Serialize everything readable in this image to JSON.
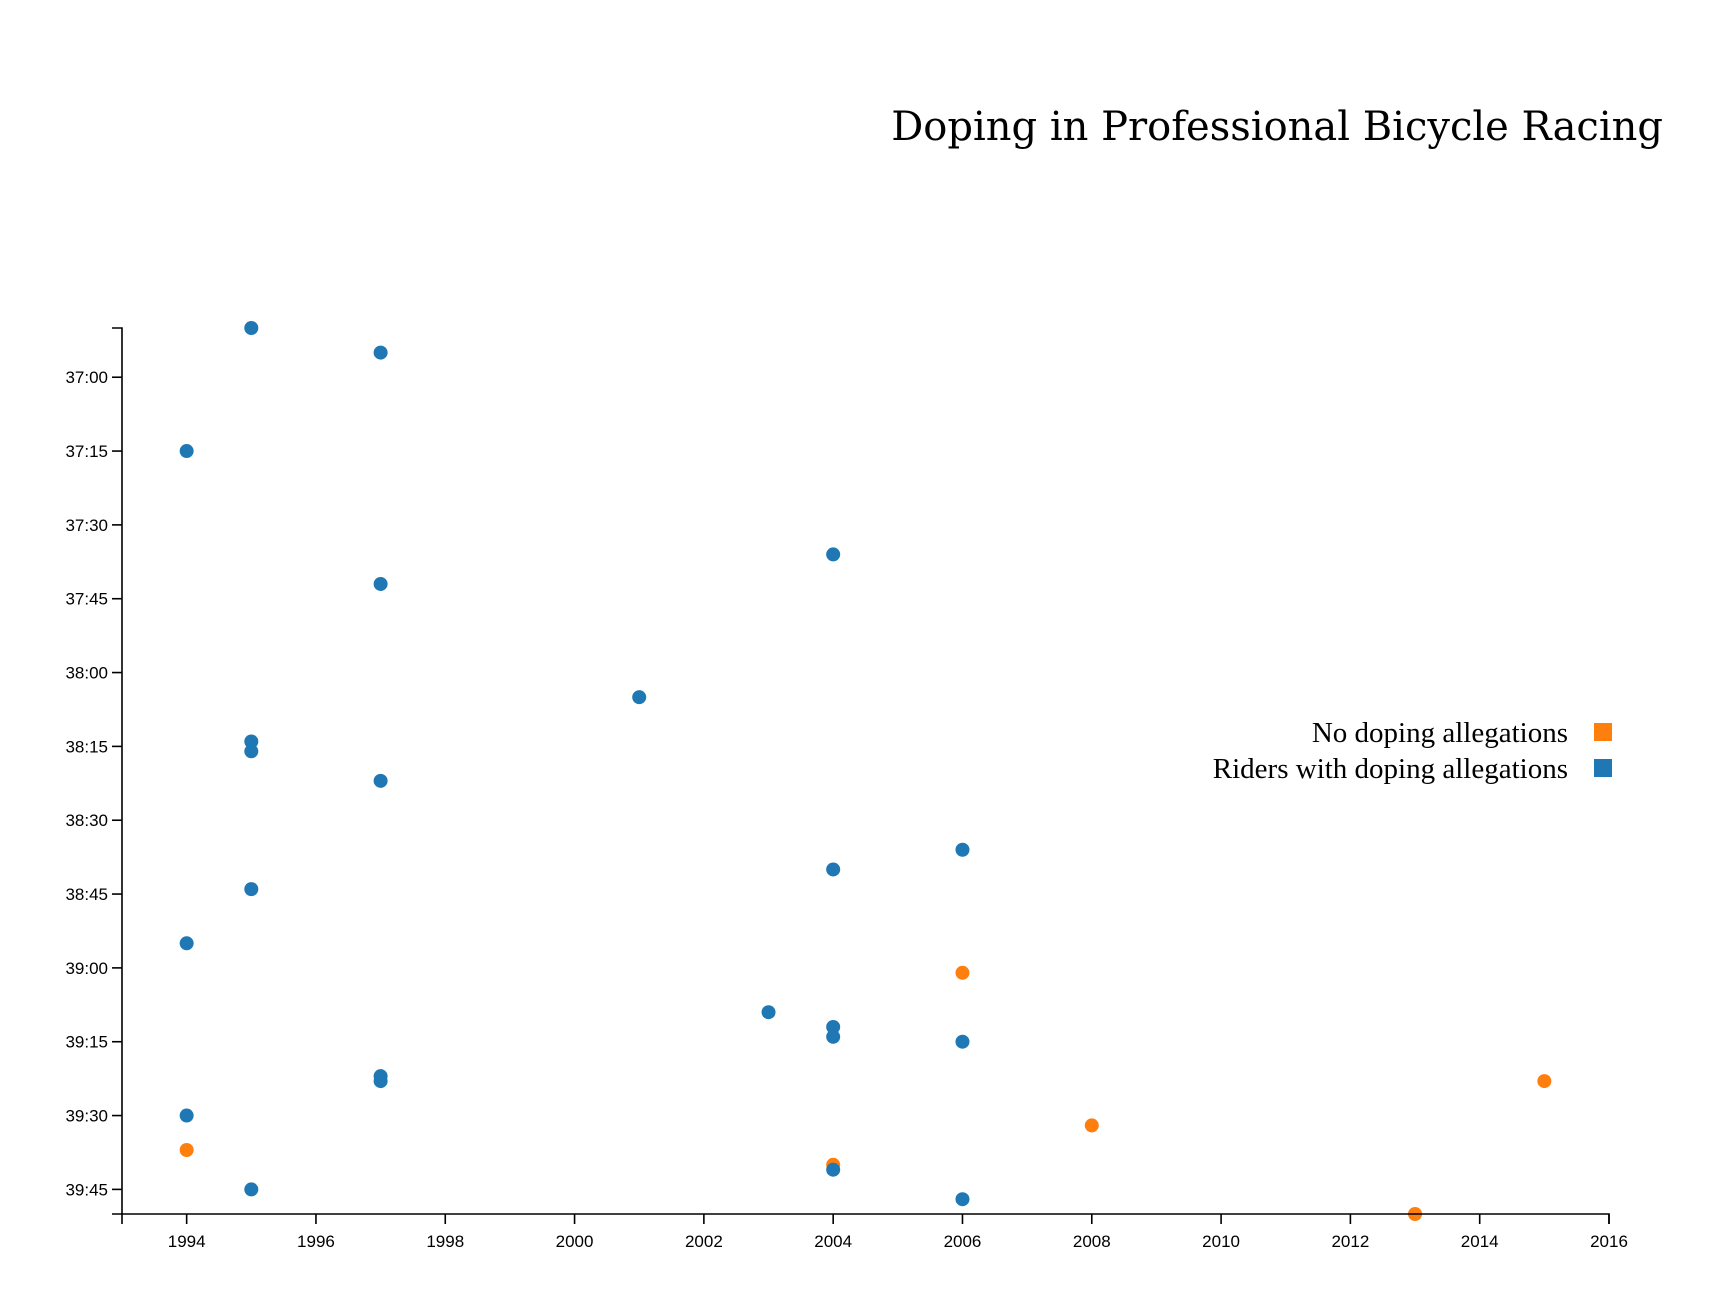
{
  "chart_data": {
    "type": "scatter",
    "title": "Doping in Professional Bicycle Racing",
    "xlabel": "",
    "ylabel": "",
    "xlim": [
      1993,
      2016
    ],
    "ylim_seconds": [
      2210,
      2390
    ],
    "ylim": [
      "36:50",
      "39:50"
    ],
    "y_inverted": true,
    "grid": false,
    "x_ticks": [
      "1994",
      "1996",
      "1998",
      "2000",
      "2002",
      "2004",
      "2006",
      "2008",
      "2010",
      "2012",
      "2014",
      "2016"
    ],
    "y_ticks": [
      "37:00",
      "37:15",
      "37:30",
      "37:45",
      "38:00",
      "38:15",
      "38:30",
      "38:45",
      "39:00",
      "39:15",
      "39:30",
      "39:45"
    ],
    "legend_position": "right",
    "series": [
      {
        "name": "No doping allegations",
        "color": "#ff7f0e",
        "points": [
          {
            "x": 1994,
            "y": "39:37"
          },
          {
            "x": 2004,
            "y": "39:40"
          },
          {
            "x": 2006,
            "y": "39:01"
          },
          {
            "x": 2008,
            "y": "39:32"
          },
          {
            "x": 2013,
            "y": "39:50"
          },
          {
            "x": 2015,
            "y": "39:23"
          }
        ]
      },
      {
        "name": "Riders with doping allegations",
        "color": "#1f77b4",
        "points": [
          {
            "x": 1995,
            "y": "36:50"
          },
          {
            "x": 1997,
            "y": "36:55"
          },
          {
            "x": 1994,
            "y": "37:15"
          },
          {
            "x": 2004,
            "y": "37:36"
          },
          {
            "x": 1997,
            "y": "37:42"
          },
          {
            "x": 2001,
            "y": "38:05"
          },
          {
            "x": 1995,
            "y": "38:14"
          },
          {
            "x": 1995,
            "y": "38:16"
          },
          {
            "x": 1997,
            "y": "38:22"
          },
          {
            "x": 2006,
            "y": "38:36"
          },
          {
            "x": 2004,
            "y": "38:40"
          },
          {
            "x": 1995,
            "y": "38:44"
          },
          {
            "x": 1994,
            "y": "38:55"
          },
          {
            "x": 2003,
            "y": "39:09"
          },
          {
            "x": 2004,
            "y": "39:12"
          },
          {
            "x": 2004,
            "y": "39:14"
          },
          {
            "x": 2006,
            "y": "39:15"
          },
          {
            "x": 1997,
            "y": "39:22"
          },
          {
            "x": 1997,
            "y": "39:23"
          },
          {
            "x": 1994,
            "y": "39:30"
          },
          {
            "x": 2004,
            "y": "39:41"
          },
          {
            "x": 1995,
            "y": "39:45"
          },
          {
            "x": 2006,
            "y": "39:47"
          }
        ]
      }
    ]
  }
}
